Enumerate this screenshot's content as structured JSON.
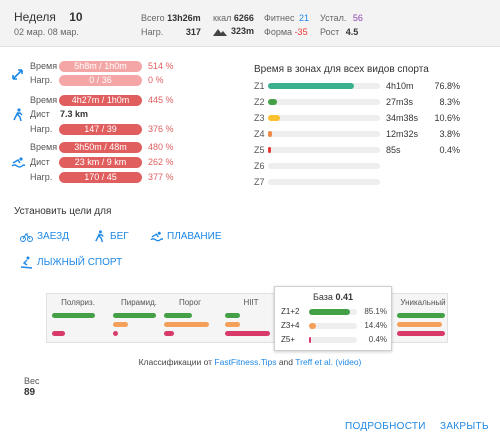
{
  "header": {
    "week_label": "Неделя",
    "week_num": "10",
    "date_range": "02 мар. 08 мар.",
    "total_label": "Всего",
    "total_value": "13h26m",
    "kcal_label": "ккал",
    "kcal_value": "6266",
    "fitness_label": "Фитнес",
    "fitness_value": "21",
    "fatigue_label": "Устал.",
    "fatigue_value": "56",
    "load_label": "Нагр.",
    "load_value": "317",
    "elev_value": "323m",
    "form_label": "Форма",
    "form_value": "-35",
    "ramp_label": "Рост",
    "ramp_value": "4.5"
  },
  "metrics": [
    {
      "group": "ride",
      "rows": [
        {
          "label": "Время",
          "text": "5h8m / 1h0m",
          "pct": "514 %",
          "level": 1.0,
          "style": "light"
        },
        {
          "label": "Нагр.",
          "text": "0 / 36",
          "pct": "0 %",
          "level": 1.0,
          "style": "light"
        }
      ]
    },
    {
      "group": "run",
      "rows": [
        {
          "label": "Время",
          "text": "4h27m / 1h0m",
          "pct": "445 %",
          "level": 1.0,
          "style": "red"
        },
        {
          "label": "Дист",
          "text": "7.3 km",
          "pct": "",
          "level": 0,
          "style": "none"
        },
        {
          "label": "Нагр.",
          "text": "147 / 39",
          "pct": "376 %",
          "level": 1.0,
          "style": "red"
        }
      ]
    },
    {
      "group": "swim",
      "rows": [
        {
          "label": "Время",
          "text": "3h50m / 48m",
          "pct": "480 %",
          "level": 1.0,
          "style": "red"
        },
        {
          "label": "Дист",
          "text": "23 km / 9 km",
          "pct": "262 %",
          "level": 1.0,
          "style": "red"
        },
        {
          "label": "Нагр.",
          "text": "170 / 45",
          "pct": "377 %",
          "level": 1.0,
          "style": "red"
        }
      ]
    }
  ],
  "zones": {
    "title": "Время в зонах для всех видов спорта",
    "rows": [
      {
        "z": "Z1",
        "time": "4h10m",
        "pct": "76.8%",
        "level": 0.768,
        "color": "#3bb08f"
      },
      {
        "z": "Z2",
        "time": "27m3s",
        "pct": "8.3%",
        "level": 0.083,
        "color": "#43a047"
      },
      {
        "z": "Z3",
        "time": "34m38s",
        "pct": "10.6%",
        "level": 0.106,
        "color": "#fbc02d"
      },
      {
        "z": "Z4",
        "time": "12m32s",
        "pct": "3.8%",
        "level": 0.038,
        "color": "#f08a4b"
      },
      {
        "z": "Z5",
        "time": "85s",
        "pct": "0.4%",
        "level": 0.004,
        "color": "#e53935"
      },
      {
        "z": "Z6",
        "time": "",
        "pct": "",
        "level": 0,
        "color": "#cccccc"
      },
      {
        "z": "Z7",
        "time": "",
        "pct": "",
        "level": 0,
        "color": "#cccccc"
      }
    ]
  },
  "goals": {
    "title": "Установить цели для",
    "ride": "ЗАЕЗД",
    "run": "БЕГ",
    "swim": "ПЛАВАНИЕ",
    "ski": "ЛЫЖНЫЙ СПОРТ"
  },
  "classification": {
    "columns": [
      {
        "name": "Поляриз.",
        "levels": [
          0.85,
          0.0,
          0.25
        ]
      },
      {
        "name": "Пирамид.",
        "levels": [
          0.85,
          0.3,
          0.1
        ]
      },
      {
        "name": "Порог",
        "levels": [
          0.55,
          0.9,
          0.2
        ]
      },
      {
        "name": "HIIT",
        "levels": [
          0.3,
          0.3,
          0.9
        ]
      },
      {
        "name": "Уникальный",
        "levels": [
          0.95,
          0.9,
          0.95
        ]
      }
    ],
    "popup": {
      "title": "База",
      "value": "0.41",
      "rows": [
        {
          "label": "Z1+2",
          "pct": "85.1%",
          "level": 0.851,
          "color": "#43a047"
        },
        {
          "label": "Z3+4",
          "pct": "14.4%",
          "level": 0.144,
          "color": "#f5a05a"
        },
        {
          "label": "Z5+",
          "pct": "0.4%",
          "level": 0.004,
          "color": "#d83a6a"
        }
      ]
    },
    "credit_prefix": "Классификации от",
    "credit_link1": "FastFitness.Tips",
    "credit_and": "and",
    "credit_link2": "Treff et al.",
    "credit_video": "(video)"
  },
  "weight": {
    "label": "Вес",
    "value": "89"
  },
  "buttons": {
    "details": "ПОДРОБНОСТИ",
    "close": "ЗАКРЫТЬ"
  },
  "colors": {
    "accent": "#1e88e5",
    "red": "#e05e5e",
    "light_red": "#f4a6a6"
  }
}
